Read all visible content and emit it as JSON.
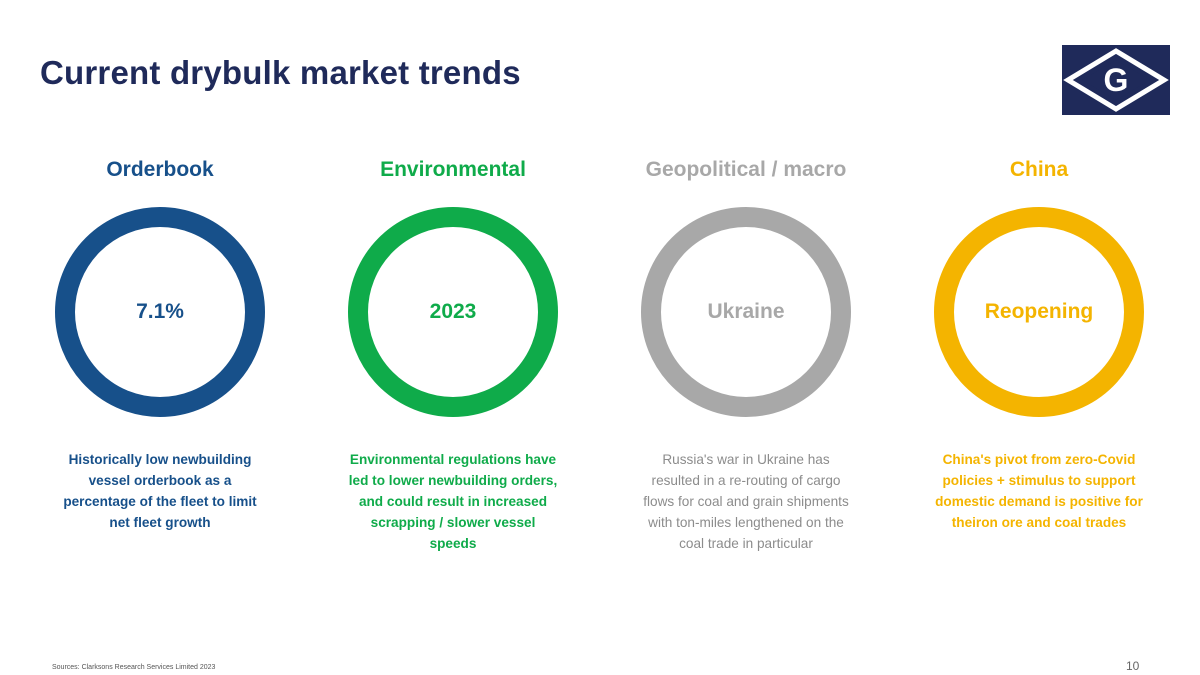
{
  "slide": {
    "title": "Current drybulk market trends",
    "source": "Sources: Clarksons Research Services Limited 2023",
    "page_number": "10"
  },
  "logo": {
    "letter": "G",
    "icon": "company-diamond-logo",
    "background": "#1f2a5a"
  },
  "columns": [
    {
      "heading": "Orderbook",
      "value": "7.1%",
      "color": "#17508a",
      "description": "Historically low newbuilding vessel orderbook as a percentage of the fleet to limit net fleet growth"
    },
    {
      "heading": "Environmental",
      "value": "2023",
      "color": "#0fab4a",
      "description": "Environmental regulations have led to lower newbuilding orders, and could result in increased scrapping / slower vessel speeds"
    },
    {
      "heading": "Geopolitical / macro",
      "value": "Ukraine",
      "color": "#a8a8a8",
      "description": "Russia's war in Ukraine has resulted in a re-routing of cargo flows for coal and grain shipments with ton-miles lengthened on the coal trade in particular"
    },
    {
      "heading": "China",
      "value": "Reopening",
      "color": "#f4b400",
      "description": "China's pivot from zero-Covid policies + stimulus to support domestic demand is positive for theiron ore and coal trades"
    }
  ]
}
